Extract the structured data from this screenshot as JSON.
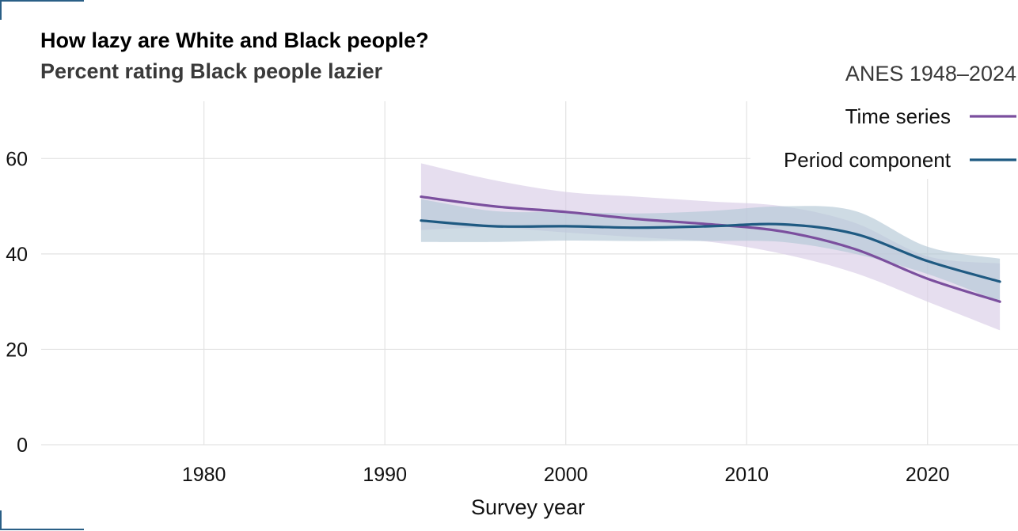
{
  "chart_data": {
    "type": "line",
    "title": "How lazy are White and Black people?",
    "subtitle": "Percent rating Black people lazier",
    "source": "ANES 1948–2024",
    "xlabel": "Survey year",
    "ylabel": "",
    "xlim": [
      1971,
      2025
    ],
    "ylim": [
      0,
      72
    ],
    "x_ticks": [
      1980,
      1990,
      2000,
      2010,
      2020
    ],
    "y_ticks": [
      0,
      20,
      40,
      60
    ],
    "grid": true,
    "legend_position": "top-right",
    "series": [
      {
        "name": "Time series",
        "color": "#7b4f9e",
        "band_color": "#d9cde6",
        "x": [
          1992,
          1996,
          2000,
          2004,
          2008,
          2012,
          2016,
          2020,
          2024
        ],
        "y": [
          52,
          50,
          48.8,
          47.3,
          46.2,
          44.7,
          41,
          34.8,
          30
        ],
        "lower": [
          45,
          45.5,
          44.5,
          43.5,
          42.5,
          40,
          36,
          30,
          24
        ],
        "upper": [
          59,
          55.5,
          53,
          52,
          51,
          50,
          46.5,
          39.5,
          38
        ]
      },
      {
        "name": "Period component",
        "color": "#1f5a82",
        "band_color": "#b4c8d6",
        "x": [
          1992,
          1996,
          2000,
          2004,
          2008,
          2012,
          2016,
          2020,
          2024
        ],
        "y": [
          47,
          45.8,
          45.8,
          45.5,
          45.8,
          46.2,
          44.2,
          38.5,
          34.2
        ],
        "lower": [
          42.5,
          42.5,
          42.8,
          42.7,
          42.7,
          42.5,
          40,
          35.8,
          30
        ],
        "upper": [
          51.5,
          49,
          48.8,
          48.5,
          49,
          50,
          49,
          41.5,
          39
        ]
      }
    ]
  }
}
